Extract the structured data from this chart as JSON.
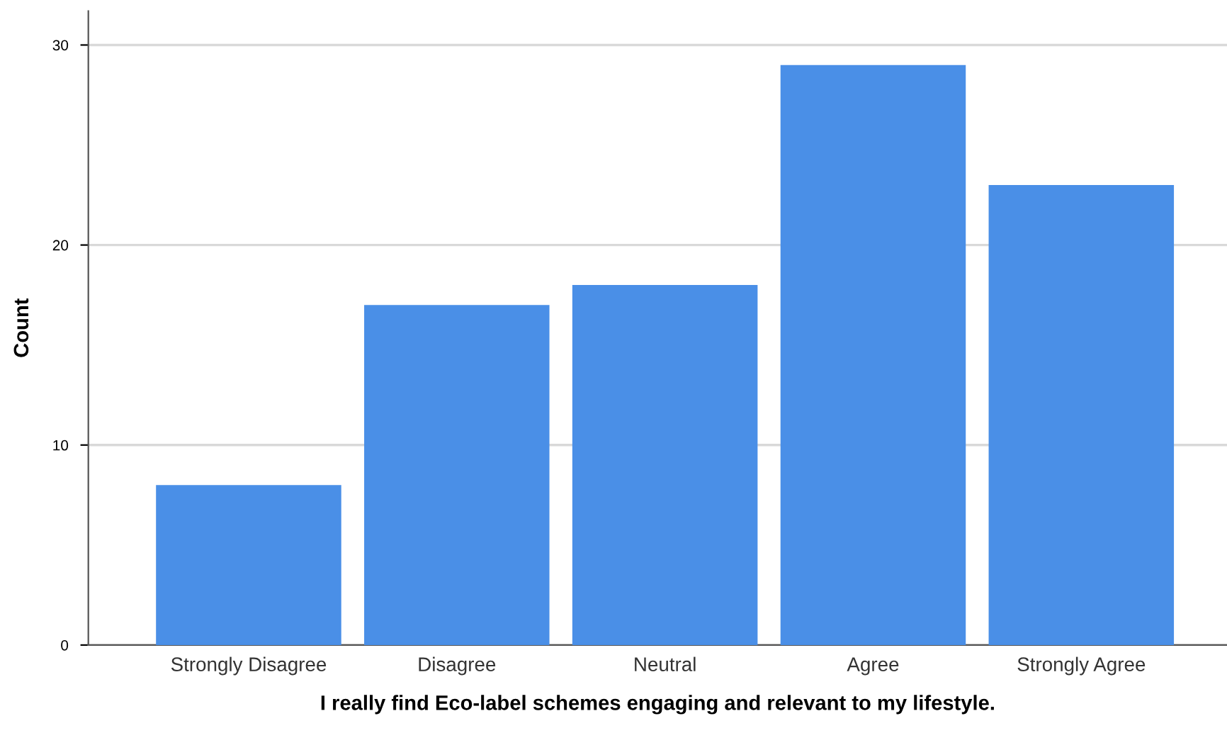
{
  "chart_data": {
    "type": "bar",
    "xlabel": "I really find Eco-label schemes engaging and relevant to my lifestyle.",
    "ylabel": "Count",
    "categories": [
      "Strongly Disagree",
      "Disagree",
      "Neutral",
      "Agree",
      "Strongly Agree"
    ],
    "values": [
      8,
      17,
      18,
      29,
      23
    ],
    "color": "#4a8fe7",
    "ylim": [
      0,
      31.7
    ],
    "yticks": [
      0,
      10,
      20,
      30
    ],
    "grid": "y"
  }
}
